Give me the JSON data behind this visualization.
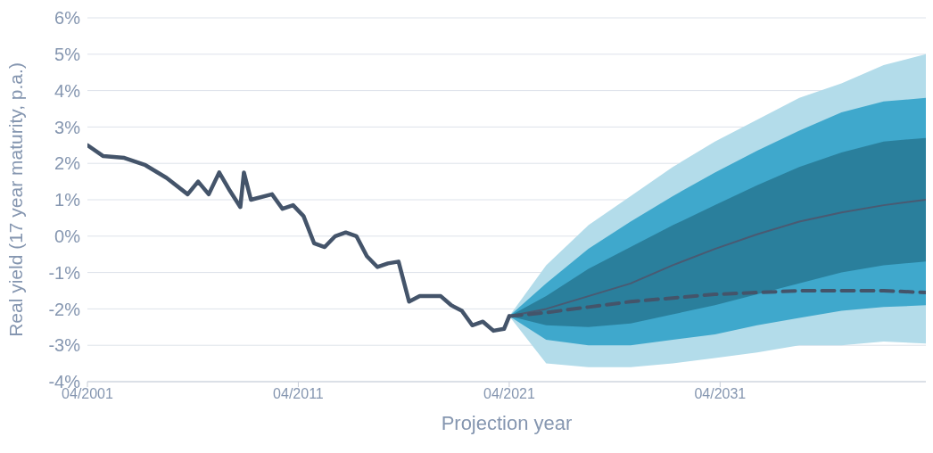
{
  "chart_data": {
    "type": "line",
    "xlabel": "Projection year",
    "ylabel": "Real yield (17 year maturity, p.a.)",
    "xlim": [
      "2001-04",
      "2041-01"
    ],
    "xticks": [
      {
        "value": "2001-04",
        "label": "04/2001"
      },
      {
        "value": "2011-04",
        "label": "04/2011"
      },
      {
        "value": "2021-04",
        "label": "04/2021"
      },
      {
        "value": "2031-04",
        "label": "04/2031"
      }
    ],
    "ylim": [
      -4,
      6
    ],
    "yticks": [
      {
        "value": -4,
        "label": "-4%"
      },
      {
        "value": -3,
        "label": "-3%"
      },
      {
        "value": -2,
        "label": "-2%"
      },
      {
        "value": -1,
        "label": "-1%"
      },
      {
        "value": 0,
        "label": "0%"
      },
      {
        "value": 1,
        "label": "1%"
      },
      {
        "value": 2,
        "label": "2%"
      },
      {
        "value": 3,
        "label": "3%"
      },
      {
        "value": 4,
        "label": "4%"
      },
      {
        "value": 5,
        "label": "5%"
      },
      {
        "value": 6,
        "label": "6%"
      }
    ],
    "grid": "y",
    "legend": false,
    "marker": "none",
    "series": [
      {
        "color": "#b3dcea",
        "x": [
          "2021-04",
          "2023-01",
          "2025-01",
          "2027-01",
          "2029-01",
          "2031-01",
          "2033-01",
          "2035-01",
          "2037-01",
          "2039-01",
          "2041-01"
        ],
        "values": [
          null,
          null,
          null,
          null,
          null,
          null,
          null,
          null,
          null,
          null,
          null
        ],
        "lower": [
          -2.2,
          -3.5,
          -3.6,
          -3.6,
          -3.5,
          -3.35,
          -3.2,
          -3.0,
          -3.0,
          -2.9,
          -2.95
        ],
        "upper": [
          -2.2,
          -0.8,
          0.3,
          1.1,
          1.9,
          2.6,
          3.2,
          3.8,
          4.2,
          4.7,
          5.0
        ]
      },
      {
        "color": "#3fa8cc",
        "x": [
          "2021-04",
          "2023-01",
          "2025-01",
          "2027-01",
          "2029-01",
          "2031-01",
          "2033-01",
          "2035-01",
          "2037-01",
          "2039-01",
          "2041-01"
        ],
        "values": [
          null,
          null,
          null,
          null,
          null,
          null,
          null,
          null,
          null,
          null,
          null
        ],
        "lower": [
          -2.2,
          -2.85,
          -3.0,
          -3.0,
          -2.85,
          -2.7,
          -2.45,
          -2.25,
          -2.05,
          -1.95,
          -1.9
        ],
        "upper": [
          -2.2,
          -1.3,
          -0.35,
          0.4,
          1.1,
          1.75,
          2.35,
          2.9,
          3.4,
          3.7,
          3.8
        ]
      },
      {
        "color": "#4a5a72",
        "x": [
          "2021-04",
          "2023-01",
          "2025-01",
          "2027-01",
          "2029-01",
          "2031-01",
          "2033-01",
          "2035-01",
          "2037-01",
          "2039-01",
          "2041-01"
        ],
        "values": [
          -2.2,
          -2.0,
          -1.65,
          -1.3,
          -0.8,
          -0.35,
          0.05,
          0.4,
          0.65,
          0.85,
          1.0
        ],
        "lower": [
          -2.2,
          -2.45,
          -2.5,
          -2.4,
          -2.15,
          -1.9,
          -1.6,
          -1.3,
          -1.0,
          -0.8,
          -0.7
        ],
        "upper": [
          -2.2,
          -1.65,
          -0.9,
          -0.3,
          0.3,
          0.85,
          1.4,
          1.9,
          2.3,
          2.6,
          2.7
        ]
      },
      {
        "color": "#44546a",
        "line_style": "solid",
        "x": [
          "2001-04",
          "2002-01",
          "2003-01",
          "2004-01",
          "2005-01",
          "2006-01",
          "2006-07",
          "2007-01",
          "2007-07",
          "2008-01",
          "2008-07",
          "2008-09",
          "2009-01",
          "2010-01",
          "2010-07",
          "2011-01",
          "2011-07",
          "2012-01",
          "2012-07",
          "2013-01",
          "2013-07",
          "2014-01",
          "2014-07",
          "2015-01",
          "2015-07",
          "2016-01",
          "2016-07",
          "2017-01",
          "2018-01",
          "2018-07",
          "2019-01",
          "2019-07",
          "2020-01",
          "2020-07",
          "2021-01",
          "2021-04"
        ],
        "values": [
          2.5,
          2.2,
          2.15,
          1.95,
          1.6,
          1.15,
          1.5,
          1.15,
          1.75,
          1.25,
          0.8,
          1.75,
          1.0,
          1.15,
          0.75,
          0.85,
          0.55,
          -0.2,
          -0.3,
          0.0,
          0.1,
          0.0,
          -0.55,
          -0.85,
          -0.75,
          -0.7,
          -1.8,
          -1.65,
          -1.65,
          -1.9,
          -2.05,
          -2.45,
          -2.35,
          -2.6,
          -2.55,
          -2.2
        ]
      },
      {
        "color": "#44546a",
        "line_style": "dashed",
        "x": [
          "2021-04",
          "2023-01",
          "2025-01",
          "2027-01",
          "2029-01",
          "2031-01",
          "2033-01",
          "2035-01",
          "2037-01",
          "2039-01",
          "2041-01"
        ],
        "values": [
          -2.2,
          -2.1,
          -1.95,
          -1.8,
          -1.7,
          -1.6,
          -1.55,
          -1.5,
          -1.5,
          -1.5,
          -1.55
        ]
      }
    ]
  }
}
